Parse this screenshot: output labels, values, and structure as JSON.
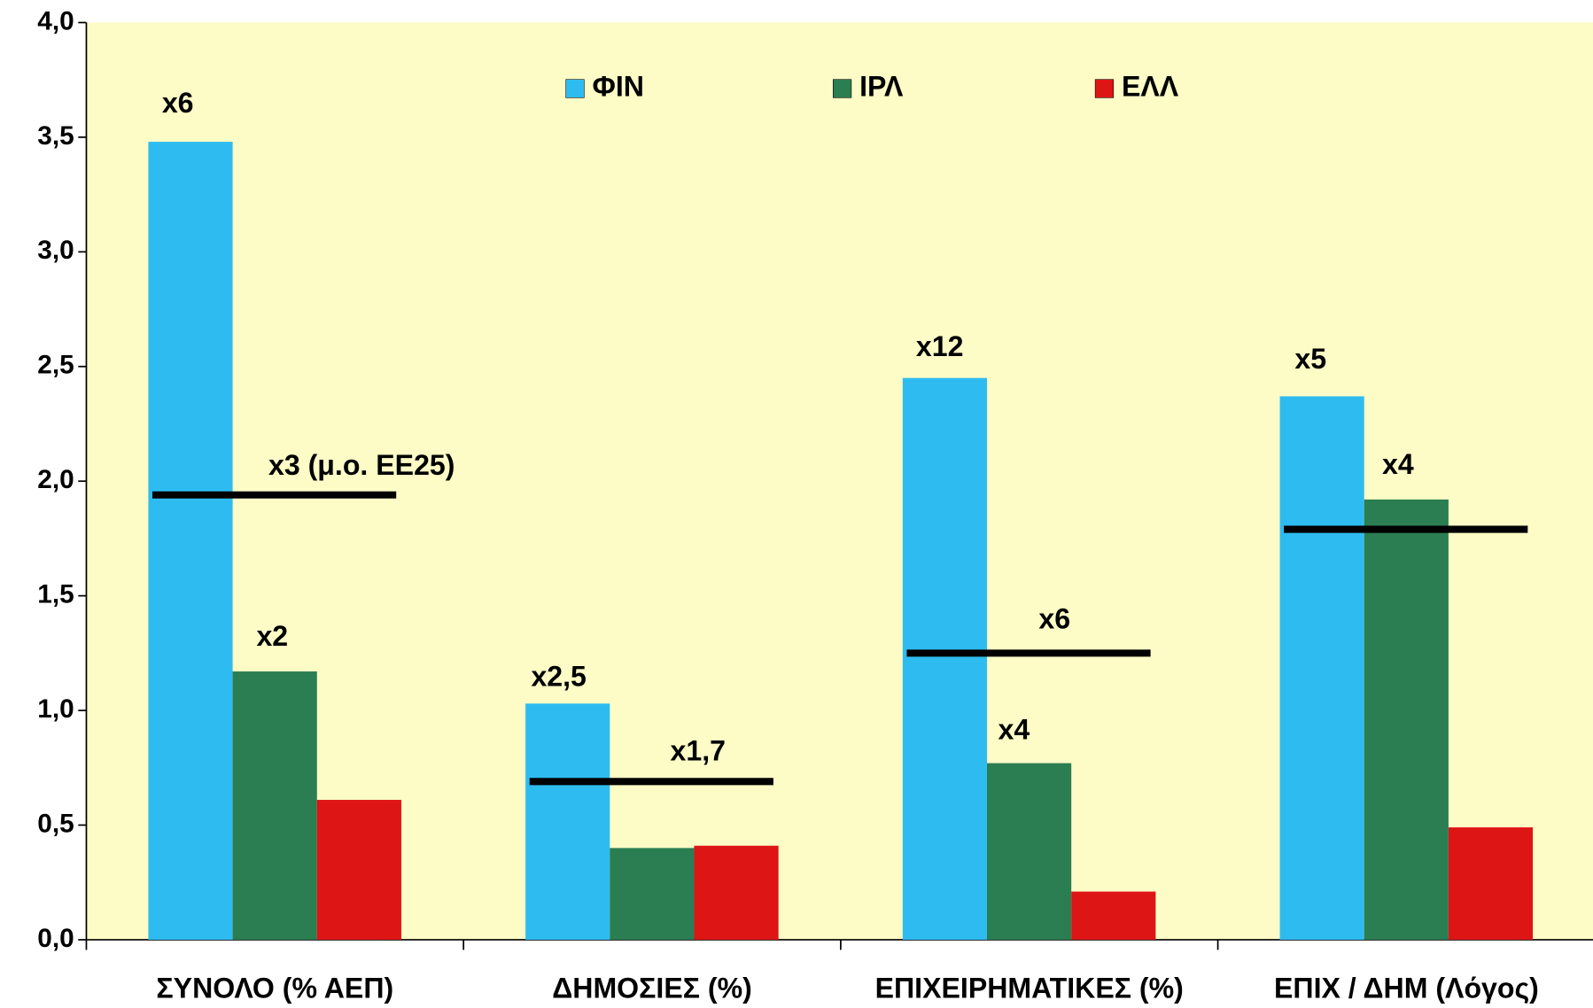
{
  "chart_data": {
    "type": "bar",
    "categories": [
      "ΣΥΝΟΛΟ (% ΑΕΠ)",
      "ΔΗΜΟΣΙΕΣ (%)",
      "ΕΠΙΧΕΙΡΗΜΑΤΙΚΕΣ (%)",
      "ΕΠΙΧ / ΔΗΜ (Λόγος)"
    ],
    "series": [
      {
        "name": "ΦΙΝ",
        "color": "#2ebcf0",
        "values": [
          3.48,
          1.03,
          2.45,
          2.37
        ]
      },
      {
        "name": "ΙΡΛ",
        "color": "#2b7d52",
        "values": [
          1.17,
          0.4,
          0.77,
          1.92
        ]
      },
      {
        "name": "ΕΛΛ",
        "color": "#dd1515",
        "values": [
          0.61,
          0.41,
          0.21,
          0.49
        ]
      }
    ],
    "reference_values": [
      1.94,
      0.69,
      1.25,
      1.79
    ],
    "reference_color": "#000000",
    "annotations": [
      "x6",
      "x2",
      "x3 (μ.ο. ΕΕ25)",
      "x2,5",
      "x1,7",
      "x12",
      "x6",
      "x4",
      "x5",
      "x4"
    ],
    "ylim": [
      0,
      4
    ],
    "yticks": [
      {
        "value": 0,
        "label": "0,0"
      },
      {
        "value": 0.5,
        "label": "0,5"
      },
      {
        "value": 1,
        "label": "1,0"
      },
      {
        "value": 1.5,
        "label": "1,5"
      },
      {
        "value": 2,
        "label": "2,0"
      },
      {
        "value": 2.5,
        "label": "2,5"
      },
      {
        "value": 3,
        "label": "3,0"
      },
      {
        "value": 3.5,
        "label": "3,5"
      },
      {
        "value": 4,
        "label": "4,0"
      }
    ],
    "grid": false,
    "legend": "top",
    "background": "#fdfbc6"
  }
}
